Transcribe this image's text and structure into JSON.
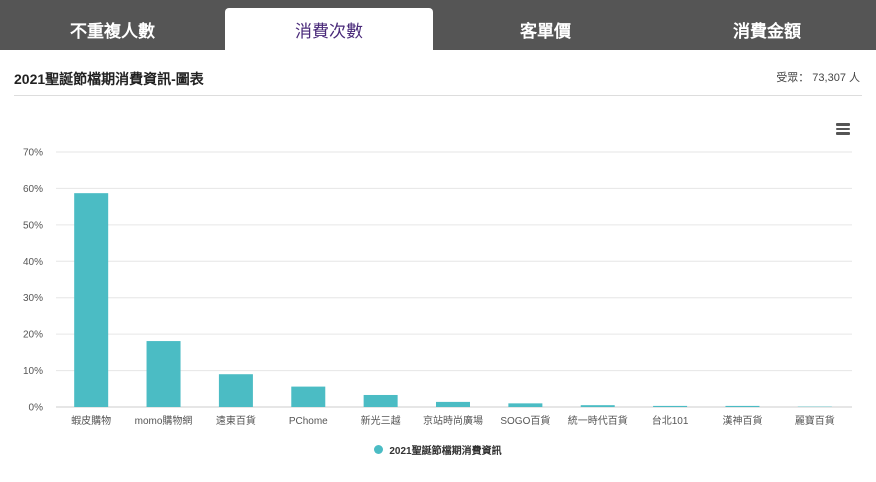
{
  "tabs": [
    {
      "label": "不重複人數",
      "active": false
    },
    {
      "label": "消費次數",
      "active": true
    },
    {
      "label": "客單價",
      "active": false
    },
    {
      "label": "消費金額",
      "active": false
    }
  ],
  "header": {
    "title": "2021聖誕節檔期消費資訊-圖表",
    "respondents": "受眾： 73,307 人"
  },
  "colors": {
    "series": "#4bbcc4",
    "tab_bg": "#555555",
    "active_tab_text": "#4a2a7a"
  },
  "icons": {
    "menu": "hamburger-menu-icon"
  },
  "chart_data": {
    "type": "bar",
    "categories": [
      "蝦皮購物",
      "momo購物網",
      "遠東百貨",
      "PChome",
      "新光三越",
      "京站時尚廣場",
      "SOGO百貨",
      "統一時代百貨",
      "台北101",
      "漢神百貨",
      "麗寶百貨"
    ],
    "series": [
      {
        "name": "2021聖誕節檔期消費資訊",
        "values": [
          58.7,
          18.1,
          9.0,
          5.6,
          3.3,
          1.4,
          1.0,
          0.5,
          0.3,
          0.3,
          0.1
        ]
      }
    ],
    "ylim": [
      0,
      70
    ],
    "yticks": [
      0,
      10,
      20,
      30,
      40,
      50,
      60,
      70
    ],
    "ytick_suffix": "%",
    "grid": true,
    "legend": "bottom-center"
  }
}
